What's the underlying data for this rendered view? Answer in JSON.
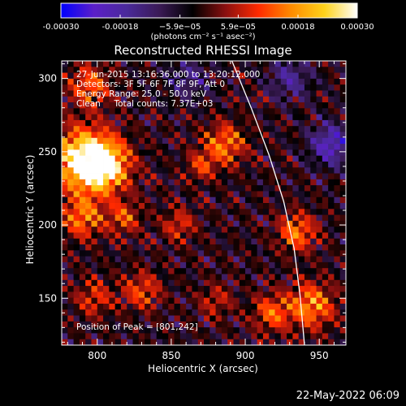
{
  "units_label": "(photons cm⁻² s⁻¹ asec⁻²)",
  "footer_date": "22-May-2022 06:09",
  "colorbar": {
    "ticks": [
      "-0.00030",
      "-0.00018",
      "−5.9e−05",
      "5.9e−05",
      "0.00018",
      "0.00030"
    ],
    "tick_values": [
      -0.0003,
      -0.00018,
      -5.9e-05,
      5.9e-05,
      0.00018,
      0.0003
    ],
    "range": [
      -0.0003,
      0.0003
    ],
    "colors": [
      "#0000ff",
      "#5b1fc8",
      "#4a2a9a",
      "#3a1a55",
      "#000000",
      "#8a1010",
      "#ff2a00",
      "#ff8c00",
      "#ffd21a",
      "#ffffff"
    ]
  },
  "info": {
    "time_range": "27-Jun-2015 13:16:36.000 to 13:20:12.000",
    "detectors": "Detectors: 3F 5F 6F 7F 8F 9F, Att 0",
    "energy": "Energy Range: 25.0 - 50.0 keV",
    "clean": "Clean     Total counts: 7.37E+03",
    "peak": "Position of Peak = [801,242]"
  },
  "chart_data": {
    "type": "heatmap",
    "title": "Reconstructed RHESSI Image",
    "xlabel": "Heliocentric X (arcsec)",
    "ylabel": "Heliocentric Y (arcsec)",
    "xlim": [
      776,
      968
    ],
    "ylim": [
      118,
      312
    ],
    "xticks": [
      800,
      850,
      900,
      950
    ],
    "yticks": [
      150,
      200,
      250,
      300
    ],
    "peak": [
      801,
      242
    ],
    "limb": [
      [
        891,
        312
      ],
      [
        904,
        280
      ],
      [
        916,
        248
      ],
      [
        926,
        216
      ],
      [
        933,
        184
      ],
      [
        937,
        152
      ],
      [
        940,
        118
      ]
    ],
    "sources": [
      {
        "x": 790,
        "y": 245,
        "amp": 0.0003,
        "sigma": 15
      },
      {
        "x": 805,
        "y": 240,
        "amp": 0.00026,
        "sigma": 12
      },
      {
        "x": 790,
        "y": 205,
        "amp": 0.00018,
        "sigma": 10
      },
      {
        "x": 818,
        "y": 205,
        "amp": 0.00014,
        "sigma": 8
      },
      {
        "x": 795,
        "y": 295,
        "amp": 0.00016,
        "sigma": 10
      },
      {
        "x": 830,
        "y": 155,
        "amp": 0.00014,
        "sigma": 9
      },
      {
        "x": 798,
        "y": 150,
        "amp": 0.00012,
        "sigma": 9
      },
      {
        "x": 855,
        "y": 200,
        "amp": 0.00012,
        "sigma": 8
      },
      {
        "x": 886,
        "y": 255,
        "amp": 0.00018,
        "sigma": 10
      },
      {
        "x": 870,
        "y": 240,
        "amp": 0.00012,
        "sigma": 7
      },
      {
        "x": 880,
        "y": 148,
        "amp": 0.0001,
        "sigma": 8
      },
      {
        "x": 935,
        "y": 195,
        "amp": 0.00018,
        "sigma": 9
      },
      {
        "x": 945,
        "y": 145,
        "amp": 0.0002,
        "sigma": 11
      },
      {
        "x": 918,
        "y": 140,
        "amp": 0.00016,
        "sigma": 9
      },
      {
        "x": 958,
        "y": 255,
        "amp": -0.00018,
        "sigma": 10
      },
      {
        "x": 930,
        "y": 300,
        "amp": -0.00012,
        "sigma": 10
      },
      {
        "x": 862,
        "y": 300,
        "amp": -0.0001,
        "sigma": 10
      }
    ]
  }
}
